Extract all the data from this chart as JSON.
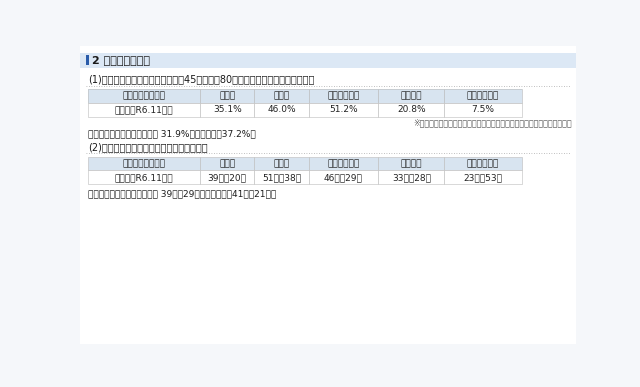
{
  "title": "2 調査結果の概要",
  "section1_title": "(1)月当たりの時間外在校等時間が45時間以上80時間未満の教諭等の校種別割合",
  "section2_title": "(2)月当たりの時間外在校等時間（校種別）",
  "table1_headers": [
    "職種（調査時期）",
    "小学校",
    "中学校",
    "義務教育学校",
    "高等学校",
    "特別支援学校"
  ],
  "table1_row": [
    "教諭等（R6.11月）",
    "35.1%",
    "46.0%",
    "51.2%",
    "20.8%",
    "7.5%"
  ],
  "table1_note": "※「教諭等」：主幹教諭、教諭、養護教諭、栄養教諭、実習助手及び講師",
  "table1_footer": "教諭等における全校種の平均 31.9%（前年同月：37.2%）",
  "table2_headers": [
    "職種（調査時期）",
    "小学校",
    "中学校",
    "義務教育学校",
    "高等学校",
    "特別支援学校"
  ],
  "table2_row": [
    "教諭等（R6.11月）",
    "39時間20分",
    "51時間38分",
    "46時間29分",
    "33時間28分",
    "23時間53分"
  ],
  "table2_footer": "教諭等における全校種の平均 39時間29分（前年同月：41時間21分）",
  "bg_color": "#f5f7fa",
  "header_bg": "#d8e4f0",
  "row_bg": "#ffffff",
  "title_bar_color": "#2a5caa",
  "title_section_bg": "#dce8f5",
  "border_color": "#bbbbbb",
  "text_color": "#222222",
  "dotted_color": "#aaaaaa"
}
